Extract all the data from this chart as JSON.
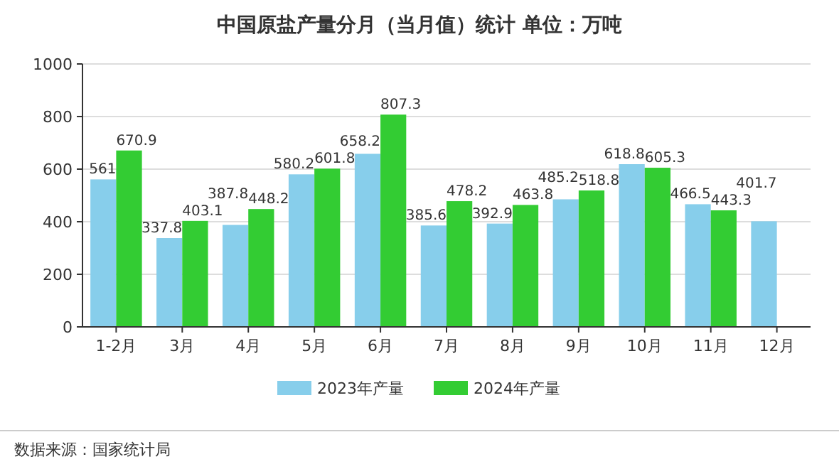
{
  "chart_data": {
    "type": "bar",
    "title": "中国原盐产量分月（当月值）统计 单位：万吨",
    "categories": [
      "1-2月",
      "3月",
      "4月",
      "5月",
      "6月",
      "7月",
      "8月",
      "9月",
      "10月",
      "11月",
      "12月"
    ],
    "series": [
      {
        "name": "2023年产量",
        "color": "#87ceeb",
        "values": [
          561,
          337.8,
          387.8,
          580.2,
          658.2,
          385.6,
          392.9,
          485.2,
          618.8,
          466.5,
          401.7
        ]
      },
      {
        "name": "2024年产量",
        "color": "#33cc33",
        "values": [
          670.9,
          403.1,
          448.2,
          601.8,
          807.3,
          478.2,
          463.8,
          518.8,
          605.3,
          443.3,
          null
        ]
      }
    ],
    "ylim": [
      0,
      1000
    ],
    "yticks": [
      0,
      200,
      400,
      600,
      800,
      1000
    ],
    "grid": "y",
    "legend": "bottom",
    "data_labels": true,
    "annotations": [
      "数据来源：国家统计局"
    ]
  }
}
